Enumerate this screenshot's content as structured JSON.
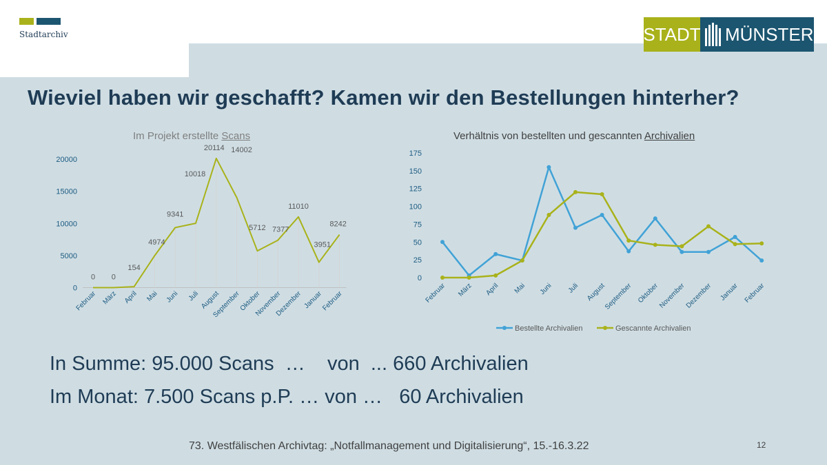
{
  "header": {
    "org_label": "Stadtarchiv",
    "logo_left": "STADT",
    "logo_right": "MÜNSTER"
  },
  "title": "Wieviel haben wir geschafft? Kamen wir den Bestellungen hinterher?",
  "chart1_title_a": "Im Projekt erstellte ",
  "chart1_title_b": "Scans",
  "chart2_title_a": "Verhältnis von bestellten und gescannten ",
  "chart2_title_b": "Archivalien",
  "summary": {
    "line1": "In Summe: 95.000 Scans  …    von  ... 660 Archivalien",
    "line2": "Im Monat: 7.500 Scans p.P. … von …   60 Archivalien"
  },
  "footer": "73. Westfälischen Archivtag: „Notfallmanagement und Digitalisierung“, 15.-16.3.22",
  "page_number": "12",
  "colors": {
    "navy": "#1f3c55",
    "olive": "#a9b21a",
    "blue_series": "#41a2d6",
    "bg": "#cfdde3"
  },
  "chart_data": [
    {
      "type": "line",
      "title": "Im Projekt erstellte Scans",
      "categories": [
        "Februar",
        "März",
        "April",
        "Mai",
        "Juni",
        "Juli",
        "August",
        "September",
        "Oktober",
        "November",
        "Dezember",
        "Januar",
        "Februar"
      ],
      "series": [
        {
          "values": [
            0,
            0,
            154,
            4974,
            9341,
            10018,
            20114,
            14002,
            5712,
            7377,
            11010,
            3951,
            8242
          ]
        }
      ],
      "ylim": [
        0,
        20000
      ],
      "yticks": [
        0,
        5000,
        10000,
        15000,
        20000
      ],
      "data_labels": true,
      "grid": false
    },
    {
      "type": "line",
      "title": "Verhältnis von bestellten und gescannten Archivalien",
      "categories": [
        "Februar",
        "März",
        "April",
        "Mai",
        "Juni",
        "Juli",
        "August",
        "September",
        "Oktober",
        "November",
        "Dezember",
        "Januar",
        "Februar"
      ],
      "series": [
        {
          "name": "Bestellte Archivalien",
          "values": [
            50,
            3,
            33,
            24,
            155,
            70,
            88,
            37,
            83,
            36,
            36,
            57,
            24
          ]
        },
        {
          "name": "Gescannte Archivalien",
          "values": [
            0,
            0,
            3,
            24,
            88,
            120,
            117,
            52,
            46,
            44,
            72,
            47,
            48
          ]
        }
      ],
      "ylim": [
        0,
        175
      ],
      "yticks": [
        0,
        25,
        50,
        75,
        100,
        125,
        150,
        175
      ],
      "legend": "bottom",
      "grid": false
    }
  ]
}
